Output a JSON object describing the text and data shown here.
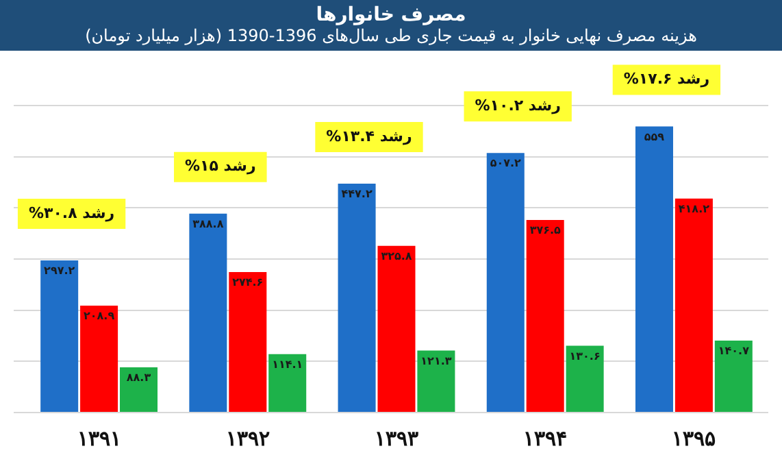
{
  "chart_data": {
    "type": "bar",
    "title": "مصرف خانوارها",
    "subtitle": "هزینه مصرف نهایی خانوار به قیمت جاری طی سال‌های 1396-1390 (هزار میلیارد تومان)",
    "categories": [
      "۱۳۹۱",
      "۱۳۹۲",
      "۱۳۹۳",
      "۱۳۹۴",
      "۱۳۹۵"
    ],
    "series": [
      {
        "color": "#1f6fc8",
        "values": [
          297.2,
          388.8,
          447.2,
          507.2,
          559
        ],
        "value_labels": [
          "۲۹۷.۲",
          "۳۸۸.۸",
          "۴۴۷.۲",
          "۵۰۷.۲",
          "۵۵۹"
        ]
      },
      {
        "color": "#ff0000",
        "values": [
          208.9,
          274.6,
          325.8,
          376.5,
          418.2
        ],
        "value_labels": [
          "۲۰۸.۹",
          "۲۷۴.۶",
          "۳۲۵.۸",
          "۳۷۶.۵",
          "۴۱۸.۲"
        ]
      },
      {
        "color": "#1db24a",
        "values": [
          88.3,
          114.1,
          121.3,
          130.6,
          140.7
        ],
        "value_labels": [
          "۸۸.۳",
          "۱۱۴.۱",
          "۱۲۱.۳",
          "۱۳۰.۶",
          "۱۴۰.۷"
        ]
      }
    ],
    "annotations": [
      "رشد ۳۰.۸%",
      "رشد ۱۵%",
      "رشد ۱۳.۴%",
      "رشد ۱۰.۲%",
      "رشد ۱۷.۶%"
    ],
    "grid": "y",
    "legend": false
  }
}
